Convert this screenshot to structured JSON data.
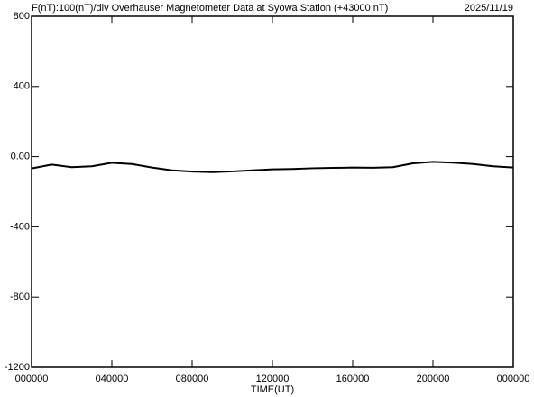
{
  "chart_data": {
    "type": "line",
    "title": "F(nT):100(nT)/div  Overhauser Magnetometer Data at Syowa Station (+43000 nT)",
    "date": "2025/11/19",
    "x_label": "TIME(UT)",
    "x": [
      0,
      1,
      2,
      3,
      4,
      5,
      6,
      7,
      8,
      9,
      10,
      11,
      12,
      13,
      14,
      15,
      16,
      17,
      18,
      19,
      20,
      21,
      22,
      23,
      24
    ],
    "series": [
      {
        "color": "#000000",
        "values": [
          -67,
          -45,
          -60,
          -55,
          -35,
          -42,
          -62,
          -78,
          -85,
          -88,
          -84,
          -78,
          -72,
          -70,
          -66,
          -64,
          -62,
          -63,
          -60,
          -38,
          -30,
          -34,
          -42,
          -55,
          -62
        ]
      }
    ],
    "xlim": [
      0,
      24
    ],
    "xticks": [
      {
        "value": 0,
        "label": "000000"
      },
      {
        "value": 4,
        "label": "040000"
      },
      {
        "value": 8,
        "label": "080000"
      },
      {
        "value": 12,
        "label": "120000"
      },
      {
        "value": 16,
        "label": "160000"
      },
      {
        "value": 20,
        "label": "200000"
      },
      {
        "value": 24,
        "label": "000000"
      }
    ],
    "ylim": [
      -1200,
      800
    ],
    "yticks": [
      800,
      400,
      {
        "value": 0,
        "label": "0.00"
      },
      -400,
      -800,
      -1200
    ],
    "grid": false
  }
}
